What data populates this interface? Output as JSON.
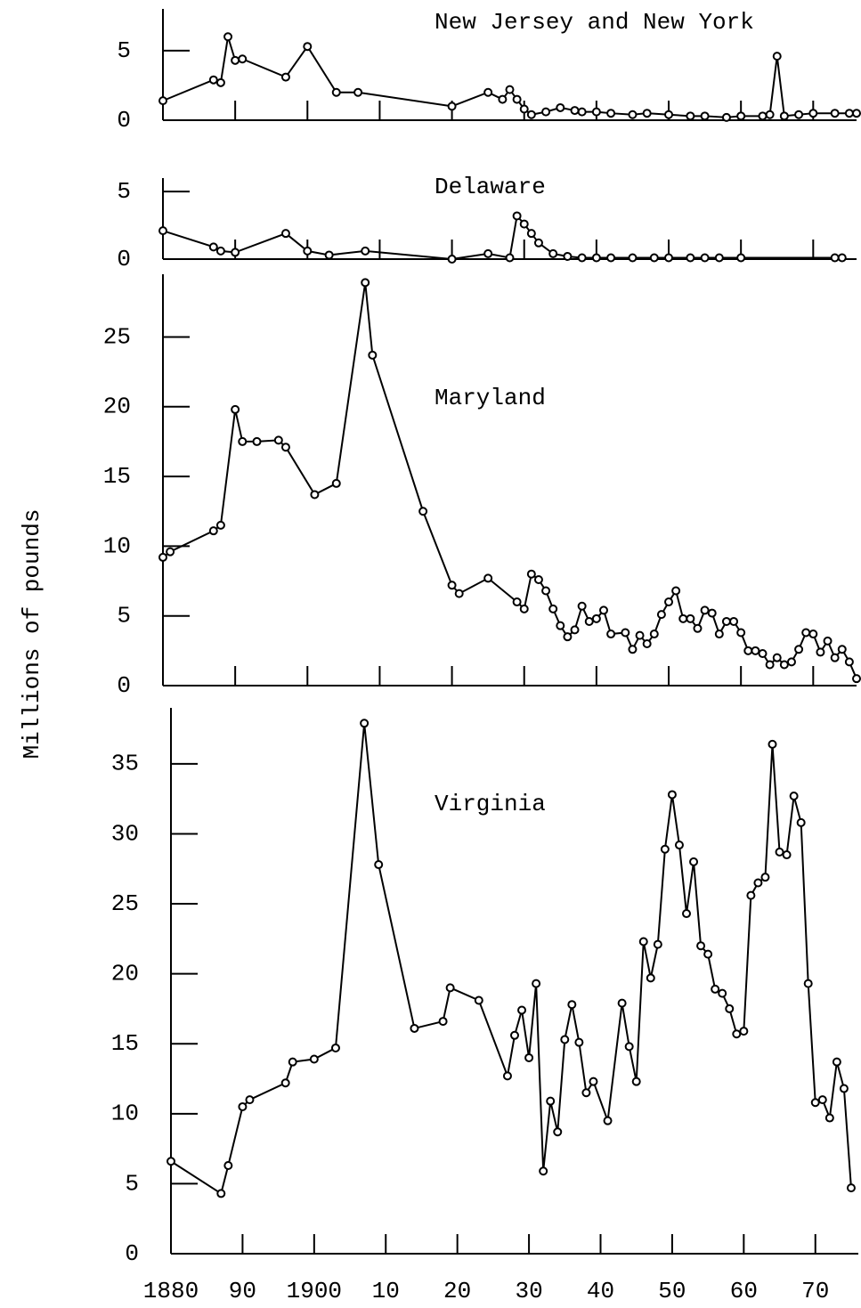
{
  "ylabel": "Millions of pounds",
  "chart_data": [
    {
      "type": "line",
      "title": "New Jersey and New York",
      "color": "#000000",
      "x": [
        1880,
        1887,
        1888,
        1889,
        1890,
        1891,
        1897,
        1900,
        1904,
        1907,
        1920,
        1925,
        1927,
        1928,
        1929,
        1930,
        1931,
        1933,
        1935,
        1937,
        1938,
        1940,
        1942,
        1945,
        1947,
        1950,
        1953,
        1955,
        1958,
        1960,
        1963,
        1964,
        1965,
        1966,
        1968,
        1970,
        1973,
        1975,
        1976
      ],
      "values": [
        1.4,
        2.9,
        2.7,
        6.0,
        4.3,
        4.4,
        3.1,
        5.3,
        2.0,
        2.0,
        1.0,
        2.0,
        1.5,
        2.2,
        1.5,
        0.8,
        0.4,
        0.6,
        0.9,
        0.7,
        0.6,
        0.6,
        0.5,
        0.4,
        0.5,
        0.4,
        0.3,
        0.3,
        0.2,
        0.3,
        0.3,
        0.4,
        4.6,
        0.3,
        0.4,
        0.5,
        0.5,
        0.5,
        0.5
      ],
      "xlim": [
        1880,
        1976
      ],
      "xticks": [
        1890,
        1900,
        1910,
        1920,
        1930,
        1940,
        1950,
        1960,
        1970
      ],
      "ylim": [
        0,
        8
      ],
      "yticks": [
        0,
        5
      ]
    },
    {
      "type": "line",
      "title": "Delaware",
      "color": "#000000",
      "x": [
        1880,
        1887,
        1888,
        1890,
        1897,
        1900,
        1903,
        1908,
        1920,
        1925,
        1928,
        1929,
        1930,
        1931,
        1932,
        1934,
        1936,
        1938,
        1940,
        1942,
        1945,
        1948,
        1950,
        1953,
        1955,
        1957,
        1960,
        1973,
        1974
      ],
      "values": [
        2.1,
        0.9,
        0.6,
        0.5,
        1.9,
        0.6,
        0.3,
        0.6,
        0,
        0.4,
        0.1,
        3.2,
        2.6,
        1.9,
        1.2,
        0.4,
        0.2,
        0.1,
        0.1,
        0.1,
        0.1,
        0.1,
        0.1,
        0.1,
        0.1,
        0.1,
        0.1,
        0.1,
        0.1
      ],
      "xlim": [
        1880,
        1976
      ],
      "xticks": [
        1890,
        1900,
        1910,
        1920,
        1930,
        1940,
        1950,
        1960,
        1970
      ],
      "ylim": [
        0,
        6
      ],
      "yticks": [
        0,
        5
      ]
    },
    {
      "type": "line",
      "title": "Maryland",
      "color": "#000000",
      "x": [
        1880,
        1881,
        1887,
        1888,
        1890,
        1891,
        1893,
        1896,
        1897,
        1901,
        1904,
        1908,
        1909,
        1916,
        1920,
        1921,
        1925,
        1929,
        1930,
        1931,
        1932,
        1933,
        1934,
        1935,
        1936,
        1937,
        1938,
        1939,
        1940,
        1941,
        1942,
        1944,
        1945,
        1946,
        1947,
        1948,
        1949,
        1950,
        1951,
        1952,
        1953,
        1954,
        1955,
        1956,
        1957,
        1958,
        1959,
        1960,
        1961,
        1962,
        1963,
        1964,
        1965,
        1966,
        1967,
        1968,
        1969,
        1970,
        1971,
        1972,
        1973,
        1974,
        1975,
        1976
      ],
      "values": [
        9.2,
        9.6,
        11.1,
        11.5,
        19.8,
        17.5,
        17.5,
        17.6,
        17.1,
        13.7,
        14.5,
        28.9,
        23.7,
        12.5,
        7.2,
        6.6,
        7.7,
        6.0,
        5.5,
        8.0,
        7.6,
        6.8,
        5.5,
        4.3,
        3.5,
        4.0,
        5.7,
        4.6,
        4.8,
        5.4,
        3.7,
        3.8,
        2.6,
        3.6,
        3.0,
        3.7,
        5.1,
        6.0,
        6.8,
        4.8,
        4.8,
        4.1,
        5.4,
        5.2,
        3.7,
        4.6,
        4.6,
        3.8,
        2.5,
        2.5,
        2.3,
        1.5,
        2.0,
        1.5,
        1.7,
        2.6,
        3.8,
        3.7,
        2.4,
        3.2,
        2.0,
        2.6,
        1.7,
        0.5
      ],
      "xlim": [
        1880,
        1976
      ],
      "xticks": [
        1890,
        1900,
        1910,
        1920,
        1930,
        1940,
        1950,
        1960,
        1970
      ],
      "ylim": [
        0,
        29.5
      ],
      "yticks": [
        0,
        5,
        10,
        15,
        20,
        25
      ]
    },
    {
      "type": "line",
      "title": "Virginia",
      "color": "#000000",
      "x": [
        1880,
        1887,
        1888,
        1890,
        1891,
        1896,
        1897,
        1900,
        1903,
        1907,
        1909,
        1914,
        1918,
        1919,
        1923,
        1927,
        1928,
        1929,
        1930,
        1931,
        1932,
        1933,
        1934,
        1935,
        1936,
        1937,
        1938,
        1939,
        1941,
        1943,
        1944,
        1945,
        1946,
        1947,
        1948,
        1949,
        1950,
        1951,
        1952,
        1953,
        1954,
        1955,
        1956,
        1957,
        1958,
        1959,
        1960,
        1961,
        1962,
        1963,
        1964,
        1965,
        1966,
        1967,
        1968,
        1969,
        1970,
        1971,
        1972,
        1973,
        1974,
        1975
      ],
      "values": [
        6.6,
        4.3,
        6.3,
        10.5,
        11.0,
        12.2,
        13.7,
        13.9,
        14.7,
        37.9,
        27.8,
        16.1,
        16.6,
        19.0,
        18.1,
        12.7,
        15.6,
        17.4,
        14.0,
        19.3,
        5.9,
        10.9,
        8.7,
        15.3,
        17.8,
        15.1,
        11.5,
        12.3,
        9.5,
        17.9,
        14.8,
        12.3,
        22.3,
        19.7,
        22.1,
        28.9,
        32.8,
        29.2,
        24.3,
        28.0,
        22.0,
        21.4,
        18.9,
        18.6,
        17.5,
        15.7,
        15.9,
        25.6,
        26.5,
        26.9,
        36.4,
        28.7,
        28.5,
        32.7,
        30.8,
        19.3,
        10.8,
        11.0,
        9.7,
        13.7,
        11.8,
        4.7
      ],
      "xlim": [
        1880,
        1976
      ],
      "xticks": [
        1880,
        {
          "value": 1890,
          "label": "90"
        },
        1900,
        {
          "value": 1910,
          "label": "10"
        },
        {
          "value": 1920,
          "label": "20"
        },
        {
          "value": 1930,
          "label": "30"
        },
        {
          "value": 1940,
          "label": "40"
        },
        {
          "value": 1950,
          "label": "50"
        },
        {
          "value": 1960,
          "label": "60"
        },
        {
          "value": 1970,
          "label": "70"
        }
      ],
      "ylim": [
        0,
        39
      ],
      "yticks": [
        0,
        5,
        10,
        15,
        20,
        25,
        30,
        35
      ]
    }
  ]
}
